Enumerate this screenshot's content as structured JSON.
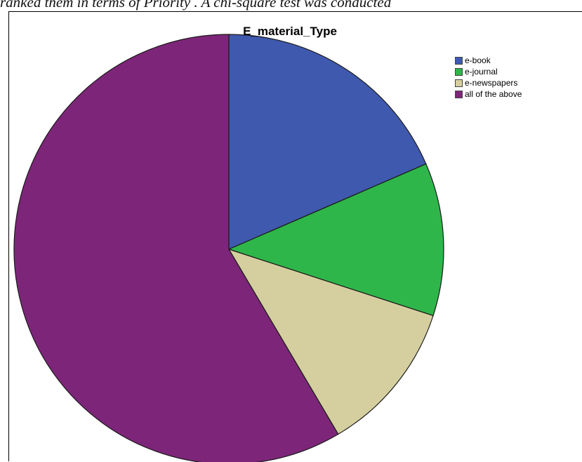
{
  "caption": {
    "text": "ranked them in terms of Priority . A chi-square test was conducted"
  },
  "chart_data": {
    "type": "pie",
    "title": "E_material_Type",
    "categories": [
      "e-book",
      "e-journal",
      "e-newspapers",
      "all of the above"
    ],
    "values": [
      18.5,
      11.5,
      11.5,
      58.5
    ],
    "colors": [
      "#3f59ae",
      "#2fb64a",
      "#d5cf9f",
      "#7d2679"
    ],
    "start": "12 o'clock",
    "direction": "clockwise",
    "legend_position": "top-right"
  }
}
